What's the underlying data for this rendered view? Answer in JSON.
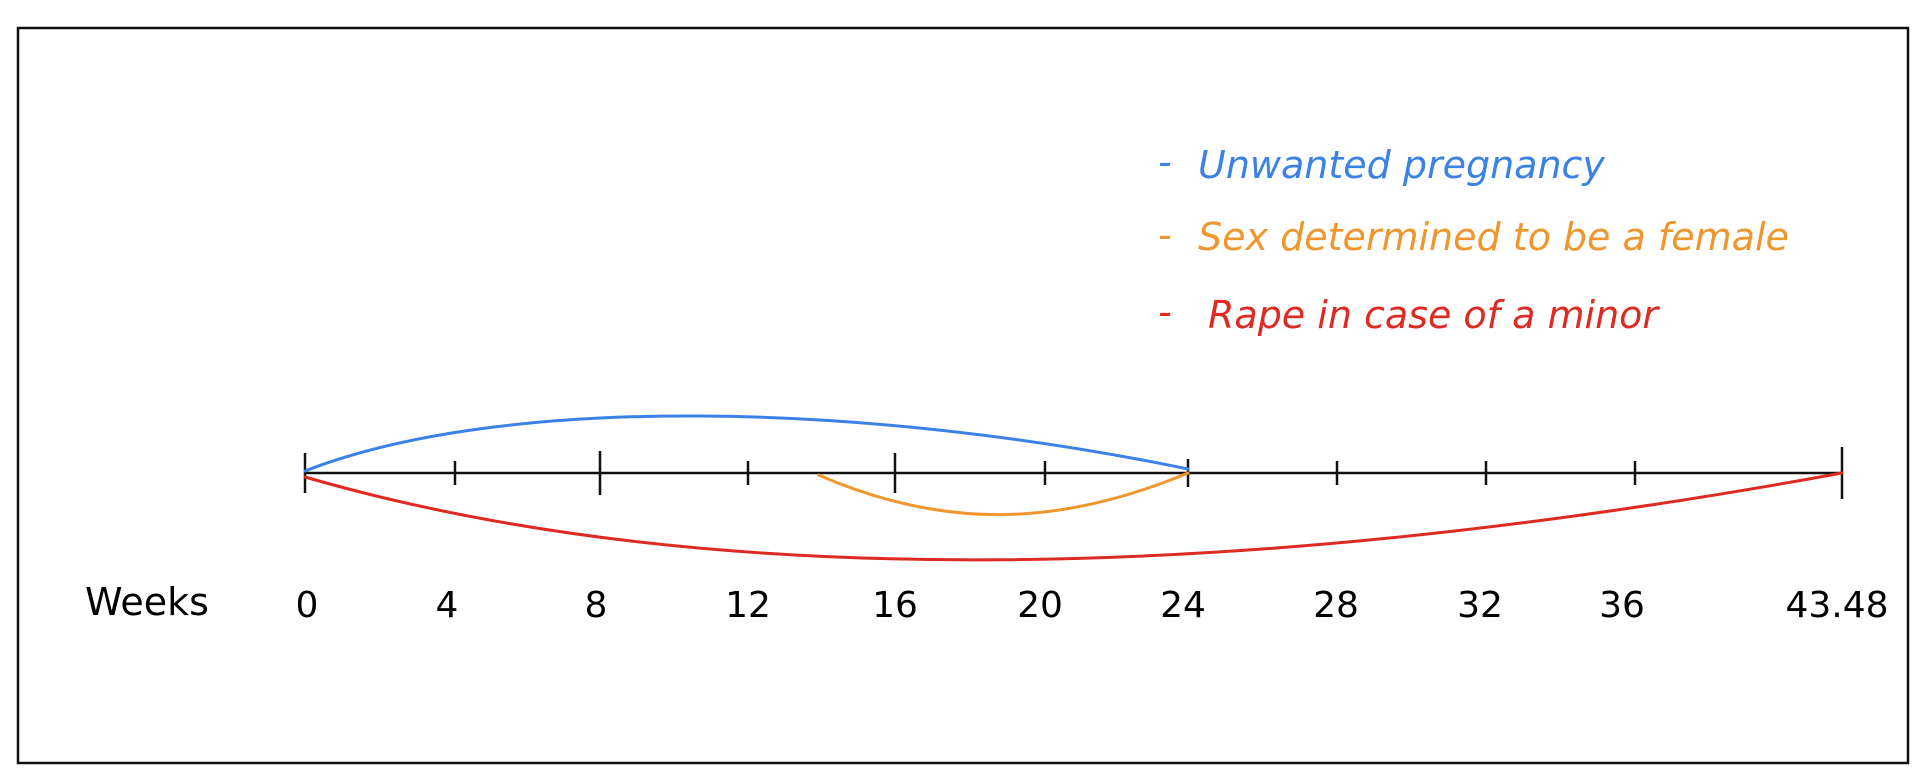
{
  "axis": {
    "title": "Weeks",
    "ticks": [
      "0",
      "4",
      "8",
      "12",
      "16",
      "20",
      "24",
      "28",
      "32",
      "36",
      "43.48"
    ]
  },
  "legend": [
    {
      "dash": "-",
      "label": "Unwanted pregnancy",
      "color": "#3b82e6"
    },
    {
      "dash": "-",
      "label": "Sex determined to be a female",
      "color": "#f0962e"
    },
    {
      "dash": "-",
      "label": "Rape in case of a minor",
      "color": "#dd2a22"
    }
  ],
  "spans": [
    {
      "name": "Unwanted pregnancy",
      "from": 0,
      "to": 24,
      "side": "above",
      "color": "#3b82e6"
    },
    {
      "name": "Sex determined to be a female",
      "from": 14,
      "to": 24,
      "side": "below",
      "color": "#f0962e"
    },
    {
      "name": "Rape in case of a minor",
      "from": 0,
      "to": 43.48,
      "side": "below",
      "color": "#dd2a22"
    }
  ],
  "colors": {
    "axis": "#111111",
    "frame": "#111111"
  }
}
